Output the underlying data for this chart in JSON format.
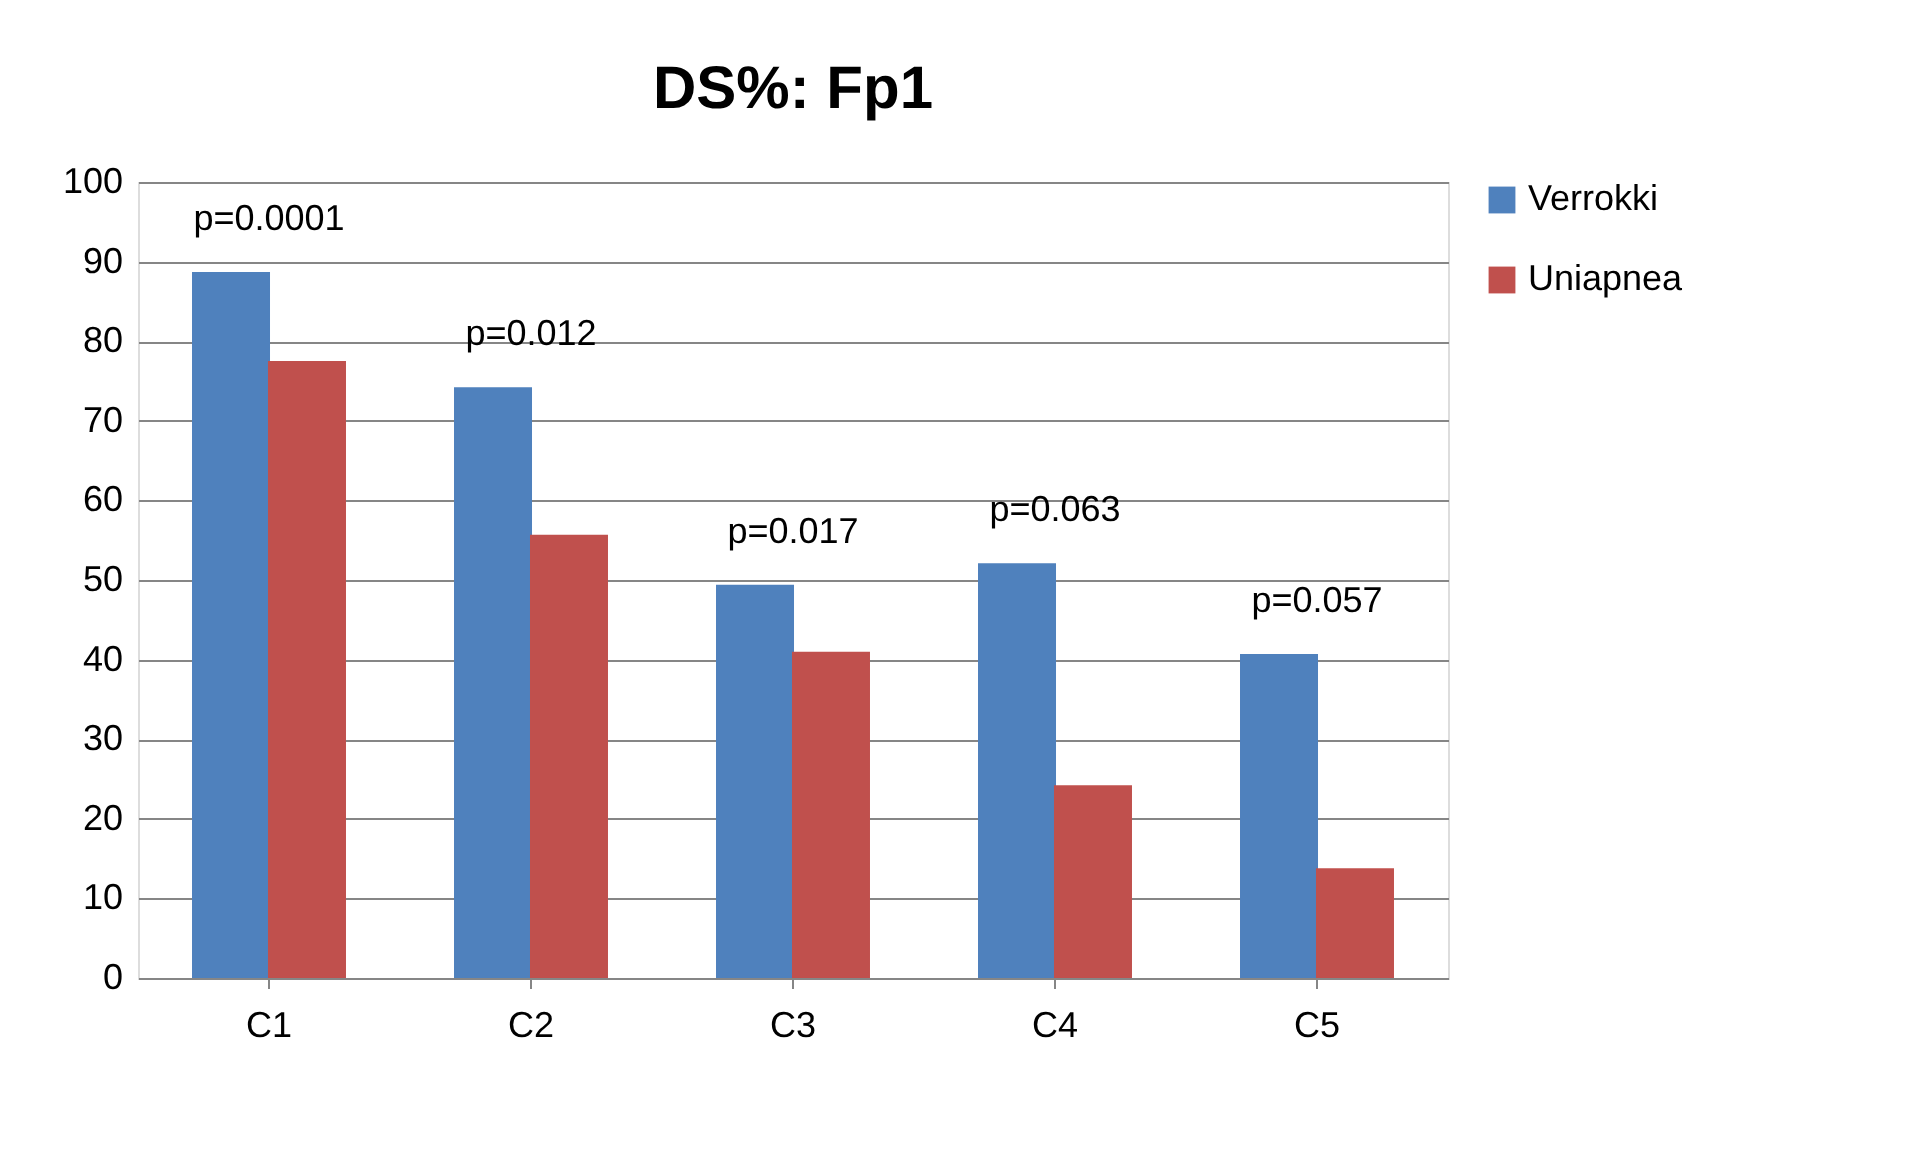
{
  "chart_data": {
    "type": "bar",
    "title": "DS%: Fp1",
    "categories": [
      "C1",
      "C2",
      "C3",
      "C4",
      "C5"
    ],
    "series": [
      {
        "name": "Verrokki",
        "color": "#4f81bd",
        "values": [
          88.7,
          74.2,
          49.4,
          52.1,
          40.7
        ]
      },
      {
        "name": "Uniapnea",
        "color": "#c0504d",
        "values": [
          77.5,
          55.7,
          41.0,
          24.2,
          13.8
        ]
      }
    ],
    "ylim": [
      0,
      100
    ],
    "yticks": [
      0,
      10,
      20,
      30,
      40,
      50,
      60,
      70,
      80,
      90,
      100
    ],
    "grid": "y",
    "legend": "right",
    "annotations": [
      "p=0.0001",
      "p=0.012",
      "p=0.017",
      "p=0.063",
      "p=0.057"
    ]
  }
}
